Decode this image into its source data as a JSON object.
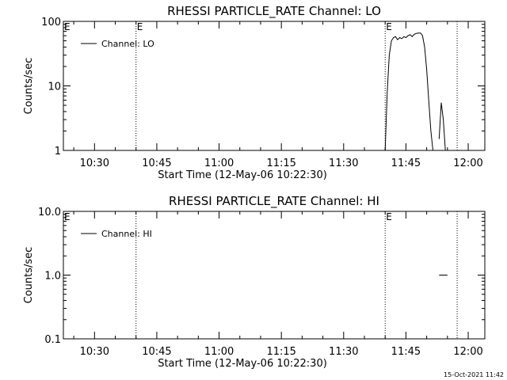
{
  "footer": {
    "timestamp": "15-Oct-2021 11:42"
  },
  "chart_data": [
    {
      "type": "line",
      "title": "RHESSI PARTICLE_RATE Channel: LO",
      "xlabel": "Start Time (12-May-06 10:22:30)",
      "ylabel": "Counts/sec",
      "y_scale": "log",
      "xlim": [
        "10:22:30",
        "12:04:00"
      ],
      "ylim": [
        1,
        100
      ],
      "x_ticks": [
        "10:30",
        "10:45",
        "11:00",
        "11:15",
        "11:30",
        "11:45",
        "12:00"
      ],
      "y_ticks": [
        "1",
        "10",
        "100"
      ],
      "legend": {
        "entries": [
          "Channel: LO"
        ],
        "position": "top-left"
      },
      "event_lines": [
        {
          "time": "10:40:00",
          "label": "E"
        },
        {
          "time": "11:40:00",
          "label": "E"
        },
        {
          "time": "11:57:20",
          "label": ""
        }
      ],
      "axis_markers": [
        {
          "time": "10:22:30",
          "label": "E"
        }
      ],
      "series": [
        {
          "name": "Channel: LO",
          "x": [
            "11:40:00",
            "11:40:30",
            "11:41:00",
            "11:41:30",
            "11:42:00",
            "11:42:30",
            "11:43:00",
            "11:43:30",
            "11:44:00",
            "11:44:30",
            "11:45:00",
            "11:45:30",
            "11:46:00",
            "11:46:30",
            "11:47:00",
            "11:47:30",
            "11:48:00",
            "11:48:30",
            "11:49:00",
            "11:49:30",
            "11:50:00",
            "11:50:30",
            "11:51:00",
            "11:51:30",
            "11:52:00",
            "11:52:30",
            "11:53:00",
            "11:53:30",
            "11:54:00",
            "11:54:30",
            "11:55:00",
            "11:55:30",
            "11:56:00",
            "11:56:30",
            "11:57:00"
          ],
          "y": [
            1,
            8,
            30,
            50,
            56,
            58,
            52,
            56,
            54,
            58,
            56,
            60,
            62,
            58,
            63,
            65,
            66,
            66,
            60,
            40,
            18,
            6,
            2,
            1,
            null,
            null,
            1.5,
            5.5,
            3,
            1,
            null,
            null,
            null,
            null,
            null
          ]
        }
      ]
    },
    {
      "type": "line",
      "title": "RHESSI PARTICLE_RATE Channel: HI",
      "xlabel": "Start Time (12-May-06 10:22:30)",
      "ylabel": "Counts/sec",
      "y_scale": "log",
      "xlim": [
        "10:22:30",
        "12:04:00"
      ],
      "ylim": [
        0.1,
        10
      ],
      "x_ticks": [
        "10:30",
        "10:45",
        "11:00",
        "11:15",
        "11:30",
        "11:45",
        "12:00"
      ],
      "y_ticks": [
        "0.1",
        "1.0",
        "10.0"
      ],
      "legend": {
        "entries": [
          "Channel: HI"
        ],
        "position": "top-left"
      },
      "event_lines": [
        {
          "time": "10:40:00",
          "label": ""
        },
        {
          "time": "11:40:00",
          "label": "E"
        },
        {
          "time": "11:57:20",
          "label": ""
        }
      ],
      "axis_markers": [
        {
          "time": "10:22:30",
          "label": "E"
        }
      ],
      "series": [
        {
          "name": "Channel: HI",
          "x": [
            "11:53:00",
            "11:55:00"
          ],
          "y": [
            1.0,
            1.0
          ]
        }
      ]
    }
  ]
}
